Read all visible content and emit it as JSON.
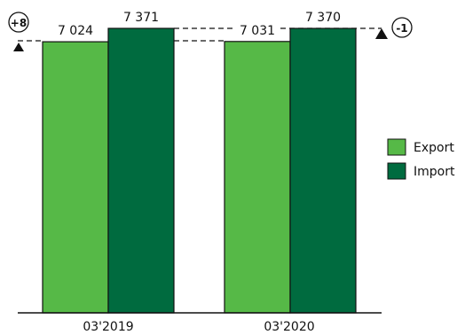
{
  "chart_data": {
    "type": "bar",
    "categories": [
      "03'2019",
      "03'2020"
    ],
    "series": [
      {
        "name": "Export",
        "values": [
          7024,
          7031
        ],
        "labels": [
          "7 024",
          "7 031"
        ],
        "color": "#56b947"
      },
      {
        "name": "Import",
        "values": [
          7371,
          7370
        ],
        "labels": [
          "7 371",
          "7 370"
        ],
        "color": "#006b3f"
      }
    ],
    "ylim": [
      0,
      7371
    ],
    "annotations": [
      {
        "text": "+8",
        "marker": "up-triangle",
        "series": "Export"
      },
      {
        "text": "-1",
        "marker": "up-triangle",
        "series": "Import"
      }
    ],
    "legend": "right",
    "grid": false
  },
  "colors": {
    "axis": "#111111",
    "dashed": "#111111"
  }
}
